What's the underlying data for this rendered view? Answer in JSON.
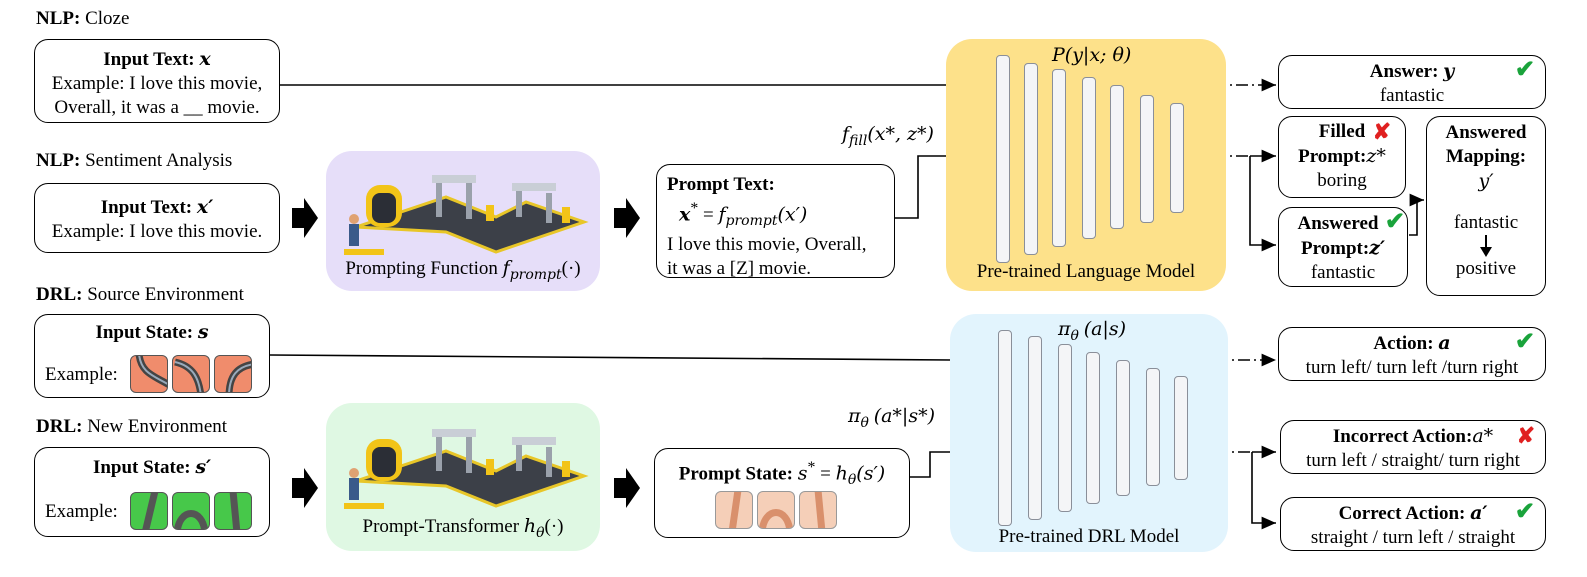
{
  "nlp_cloze": {
    "section_prefix": "NLP:",
    "section_title": "Cloze",
    "input_title": "Input Text:",
    "input_var": "x",
    "input_lines": [
      "Example: I love this movie,",
      "Overall, it was a __ movie."
    ]
  },
  "nlp_sentiment": {
    "section_prefix": "NLP:",
    "section_title": "Sentiment Analysis",
    "input_title": "Input Text:",
    "input_var": "x′",
    "input_line": "Example: I love this movie."
  },
  "drl_source": {
    "section_prefix": "DRL:",
    "section_title": "Source Environment",
    "input_title": "Input State:",
    "input_var": "s",
    "example_label": "Example:"
  },
  "drl_new": {
    "section_prefix": "DRL:",
    "section_title": "New Environment",
    "input_title": "Input State:",
    "input_var": "s′",
    "example_label": "Example:"
  },
  "prompting_function": {
    "label": "Prompting Function",
    "math": "f",
    "sub": "prompt",
    "arg": "(·)"
  },
  "prompt_transformer": {
    "label": "Prompt-Transformer",
    "math": "h",
    "sub": "θ",
    "arg": "(·)"
  },
  "prompt_text": {
    "title": "Prompt Text:",
    "formula_lhs": "x",
    "formula_sup": "*",
    "formula_eq": " = ",
    "formula_f": "f",
    "formula_sub": "prompt",
    "formula_arg": "(x′)",
    "line1": "I love this movie, Overall,",
    "line2": "it was a [Z] movie."
  },
  "prompt_state": {
    "title": "Prompt State:",
    "formula_lhs": "s",
    "formula_sup": "*",
    "formula_eq": " = ",
    "formula_h": "h",
    "formula_sub": "θ",
    "formula_arg": "(s′)"
  },
  "language_model": {
    "label": "Pre-trained Language Model",
    "prob": "P(y|x; θ)",
    "fill_f": "f",
    "fill_sub": "fill",
    "fill_arg": "(x*, z*)"
  },
  "drl_model": {
    "label": "Pre-trained DRL Model",
    "policy_pi": "π",
    "policy_sub": "θ",
    "policy_arg": "(a|s)",
    "policy2_pi": "π",
    "policy2_sub": "θ",
    "policy2_arg": "(a*|s*)"
  },
  "answer": {
    "title": "Answer:",
    "var": "y",
    "value": "fantastic"
  },
  "filled_prompt": {
    "line1": "Filled",
    "line2": "Prompt:",
    "var": "z*",
    "value": "boring"
  },
  "answered_prompt": {
    "line1": "Answered",
    "line2": "Prompt:",
    "var": "z′",
    "value": "fantastic"
  },
  "answered_mapping": {
    "line1": "Answered",
    "line2": "Mapping:",
    "var": "y′",
    "from": "fantastic",
    "to": "positive"
  },
  "action": {
    "title": "Action:",
    "var": "a",
    "value": "turn left/ turn left /turn right"
  },
  "incorrect_action": {
    "title": "Incorrect Action:",
    "var": "a*",
    "value": "turn left / straight/ turn right"
  },
  "correct_action": {
    "title": "Correct Action:",
    "var": "a′",
    "value": "straight / turn left / straight"
  },
  "marks": {
    "check": "✔",
    "cross": "✘"
  },
  "colors": {
    "lm_panel": "#fde18a",
    "drl_panel": "#e2f4fd",
    "prompting_panel": "#e6def9",
    "transformer_panel": "#dff8e3",
    "check": "#1aa33b",
    "cross": "#e02020"
  }
}
